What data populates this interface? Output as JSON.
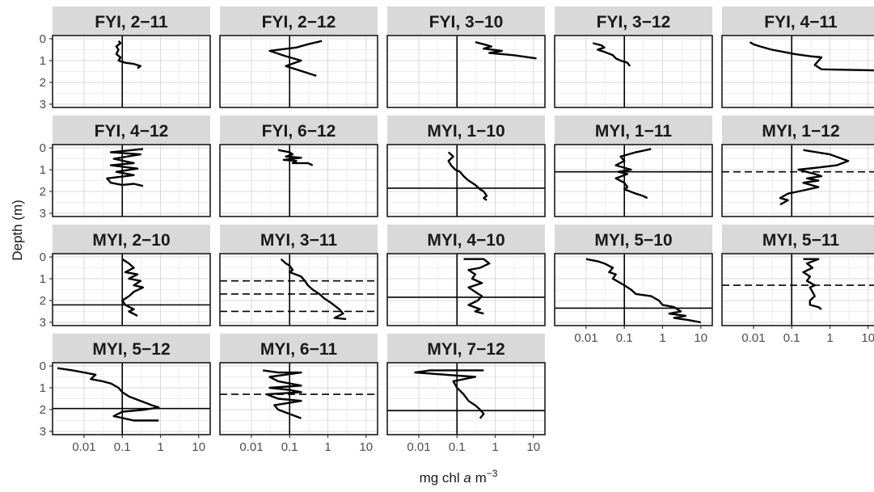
{
  "chart_data": {
    "type": "line",
    "title": "",
    "xlabel": {
      "base": "mg chl",
      "italic": "a",
      "unit": "m",
      "exponent": "−3"
    },
    "ylabel": "Depth (m)",
    "x_scale": "log10",
    "xlim": [
      0.0015,
      20
    ],
    "ylim": [
      3.15,
      -0.15
    ],
    "x_ticks": [
      0.01,
      0.1,
      1,
      10
    ],
    "x_tick_labels": [
      "0.01",
      "0.1",
      "1",
      "10"
    ],
    "y_ticks": [
      0,
      1,
      2,
      3
    ],
    "y_tick_labels": [
      "0",
      "1",
      "2",
      "3"
    ],
    "reference_x": 0.1,
    "grid": true,
    "panel_background": "#ffffff",
    "strip_background": "#d9d9d9",
    "line_color": "#000000",
    "panels": [
      {
        "label": "FYI, 2−11",
        "x": [
          0.08,
          0.09,
          0.07,
          0.08,
          0.07,
          0.09,
          0.08,
          0.12,
          0.2,
          0.3,
          0.25
        ],
        "y": [
          0.1,
          0.2,
          0.35,
          0.5,
          0.7,
          0.85,
          1.0,
          1.1,
          1.15,
          1.25,
          1.35
        ],
        "hlines": []
      },
      {
        "label": "FYI, 2−12",
        "x": [
          0.7,
          0.3,
          0.15,
          0.03,
          0.08,
          0.2,
          0.08,
          0.5
        ],
        "y": [
          0.1,
          0.25,
          0.4,
          0.55,
          0.8,
          1.0,
          1.25,
          1.7
        ],
        "hlines": []
      },
      {
        "label": "FYI, 3−10",
        "x": [
          0.3,
          0.5,
          0.8,
          0.5,
          1.5,
          0.7,
          3,
          12
        ],
        "y": [
          0.15,
          0.25,
          0.35,
          0.45,
          0.55,
          0.65,
          0.75,
          0.9
        ],
        "hlines": []
      },
      {
        "label": "FYI, 3−12",
        "x": [
          0.015,
          0.025,
          0.03,
          0.02,
          0.03,
          0.05,
          0.06,
          0.08,
          0.12,
          0.14
        ],
        "y": [
          0.2,
          0.3,
          0.4,
          0.5,
          0.6,
          0.75,
          0.9,
          1.0,
          1.1,
          1.25
        ],
        "hlines": []
      },
      {
        "label": "FYI, 4−11",
        "x": [
          0.008,
          0.01,
          0.015,
          0.03,
          0.06,
          0.12,
          0.3,
          0.6,
          0.4,
          0.6,
          20
        ],
        "y": [
          0.15,
          0.25,
          0.35,
          0.5,
          0.6,
          0.7,
          0.8,
          0.85,
          1.2,
          1.4,
          1.45
        ],
        "hlines": []
      },
      {
        "label": "FYI, 4−12",
        "x": [
          0.35,
          0.05,
          0.3,
          0.06,
          0.2,
          0.05,
          0.25,
          0.07,
          0.2,
          0.04,
          0.05,
          0.1,
          0.2,
          0.35
        ],
        "y": [
          0.05,
          0.2,
          0.3,
          0.5,
          0.7,
          0.8,
          0.95,
          1.1,
          1.25,
          1.4,
          1.6,
          1.7,
          1.65,
          1.75
        ],
        "hlines": []
      },
      {
        "label": "FYI, 6−12",
        "x": [
          0.05,
          0.1,
          0.12,
          0.08,
          0.2,
          0.07,
          0.15,
          0.12,
          0.3,
          0.4
        ],
        "y": [
          0.1,
          0.2,
          0.3,
          0.4,
          0.45,
          0.55,
          0.6,
          0.7,
          0.7,
          0.8
        ],
        "hlines": []
      },
      {
        "label": "MYI, 1−10",
        "x": [
          0.06,
          0.08,
          0.06,
          0.07,
          0.09,
          0.12,
          0.15,
          0.2,
          0.3,
          0.4,
          0.5,
          0.6,
          0.5,
          0.6
        ],
        "y": [
          0.2,
          0.4,
          0.6,
          0.8,
          1.0,
          1.1,
          1.3,
          1.5,
          1.7,
          1.9,
          2.0,
          2.2,
          2.3,
          2.4
        ],
        "hlines": [
          {
            "y": 1.85,
            "style": "solid"
          }
        ]
      },
      {
        "label": "MYI, 1−11",
        "x": [
          0.5,
          0.2,
          0.08,
          0.1,
          0.06,
          0.15,
          0.07,
          0.12,
          0.06,
          0.1,
          0.12,
          0.1,
          0.2,
          0.3,
          0.4
        ],
        "y": [
          0.05,
          0.2,
          0.4,
          0.6,
          0.8,
          1.0,
          1.1,
          1.2,
          1.4,
          1.6,
          1.8,
          1.9,
          2.1,
          2.2,
          2.3
        ],
        "hlines": [
          {
            "y": 1.1,
            "style": "solid"
          }
        ]
      },
      {
        "label": "MYI, 1−12",
        "x": [
          0.2,
          1,
          3,
          1.5,
          0.5,
          0.15,
          0.4,
          0.6,
          0.25,
          0.5,
          0.2,
          0.5,
          0.15,
          0.08,
          0.05,
          0.08,
          0.05
        ],
        "y": [
          0.1,
          0.3,
          0.6,
          0.8,
          0.9,
          1.0,
          1.2,
          1.3,
          1.4,
          1.5,
          1.6,
          1.8,
          2.0,
          2.1,
          2.3,
          2.4,
          2.6
        ],
        "hlines": [
          {
            "y": 1.1,
            "style": "dashed"
          }
        ]
      },
      {
        "label": "MYI, 2−10",
        "x": [
          0.1,
          0.15,
          0.2,
          0.12,
          0.25,
          0.15,
          0.3,
          0.2,
          0.35,
          0.2,
          0.15,
          0.1,
          0.12,
          0.2,
          0.15,
          0.25
        ],
        "y": [
          0.1,
          0.3,
          0.5,
          0.7,
          0.8,
          1.0,
          1.1,
          1.3,
          1.4,
          1.6,
          1.8,
          2.0,
          2.2,
          2.4,
          2.5,
          2.7
        ],
        "hlines": [
          {
            "y": 2.2,
            "style": "solid"
          }
        ]
      },
      {
        "label": "MYI, 3−11",
        "x": [
          0.06,
          0.08,
          0.1,
          0.12,
          0.1,
          0.2,
          0.25,
          0.3,
          0.4,
          0.6,
          0.8,
          1.2,
          2,
          2.5,
          1.5,
          3
        ],
        "y": [
          0.1,
          0.3,
          0.4,
          0.6,
          0.7,
          0.9,
          1.1,
          1.3,
          1.5,
          1.7,
          1.9,
          2.1,
          2.4,
          2.6,
          2.8,
          2.85
        ],
        "hlines": [
          {
            "y": 1.1,
            "style": "dashed"
          },
          {
            "y": 1.7,
            "style": "dashed"
          },
          {
            "y": 2.5,
            "style": "dashed"
          }
        ]
      },
      {
        "label": "MYI, 4−10",
        "x": [
          0.15,
          0.5,
          0.7,
          0.4,
          0.2,
          0.3,
          0.25,
          0.45,
          0.2,
          0.3,
          0.45,
          0.35,
          0.2,
          0.4,
          0.3,
          0.5
        ],
        "y": [
          0.1,
          0.1,
          0.3,
          0.5,
          0.6,
          0.8,
          1.0,
          1.2,
          1.4,
          1.6,
          1.8,
          2.0,
          2.2,
          2.4,
          2.5,
          2.6
        ],
        "hlines": [
          {
            "y": 1.85,
            "style": "solid"
          }
        ]
      },
      {
        "label": "MYI, 5−10",
        "x": [
          0.01,
          0.02,
          0.03,
          0.05,
          0.04,
          0.06,
          0.05,
          0.08,
          0.1,
          0.15,
          0.2,
          0.5,
          0.8,
          1,
          2,
          3,
          1.5,
          4,
          2,
          5,
          10
        ],
        "y": [
          0.1,
          0.2,
          0.3,
          0.5,
          0.7,
          0.8,
          1.0,
          1.2,
          1.3,
          1.5,
          1.7,
          1.8,
          2.0,
          2.2,
          2.3,
          2.5,
          2.6,
          2.7,
          2.8,
          2.9,
          3.0
        ],
        "hlines": [
          {
            "y": 2.35,
            "style": "solid"
          }
        ]
      },
      {
        "label": "MYI, 5−11",
        "x": [
          0.2,
          0.5,
          0.25,
          0.35,
          0.2,
          0.3,
          0.25,
          0.4,
          0.3,
          0.35,
          0.4,
          0.3,
          0.3,
          0.5,
          0.6
        ],
        "y": [
          0.1,
          0.1,
          0.3,
          0.5,
          0.7,
          0.9,
          1.1,
          1.3,
          1.4,
          1.6,
          1.8,
          2.0,
          2.2,
          2.3,
          2.4
        ],
        "hlines": [
          {
            "y": 1.3,
            "style": "dashed"
          }
        ]
      },
      {
        "label": "MYI, 5−12",
        "x": [
          0.002,
          0.005,
          0.01,
          0.02,
          0.015,
          0.03,
          0.05,
          0.08,
          0.1,
          0.15,
          0.3,
          0.6,
          0.9,
          0.4,
          0.1,
          0.06,
          0.2,
          0.9
        ],
        "y": [
          0.1,
          0.2,
          0.3,
          0.4,
          0.6,
          0.7,
          0.8,
          1.0,
          1.2,
          1.4,
          1.6,
          1.8,
          1.9,
          2.0,
          2.1,
          2.3,
          2.5,
          2.5
        ],
        "hlines": [
          {
            "y": 1.95,
            "style": "solid"
          }
        ]
      },
      {
        "label": "MYI, 6−11",
        "x": [
          0.02,
          0.05,
          0.2,
          0.03,
          0.05,
          0.2,
          0.03,
          0.1,
          0.2,
          0.025,
          0.05,
          0.2,
          0.04,
          0.05,
          0.1,
          0.2
        ],
        "y": [
          0.2,
          0.3,
          0.3,
          0.5,
          0.7,
          0.9,
          1.0,
          1.1,
          1.2,
          1.3,
          1.5,
          1.6,
          1.8,
          2.0,
          2.2,
          2.4
        ],
        "hlines": [
          {
            "y": 1.3,
            "style": "dashed"
          }
        ]
      },
      {
        "label": "MYI, 7−12",
        "x": [
          0.5,
          0.02,
          0.008,
          0.05,
          0.3,
          0.08,
          0.1,
          0.15,
          0.2,
          0.3,
          0.4,
          0.5,
          0.4
        ],
        "y": [
          0.2,
          0.2,
          0.3,
          0.4,
          0.5,
          0.7,
          1.0,
          1.3,
          1.6,
          1.8,
          2.0,
          2.2,
          2.4
        ],
        "hlines": [
          {
            "y": 2.05,
            "style": "solid"
          }
        ]
      }
    ]
  }
}
